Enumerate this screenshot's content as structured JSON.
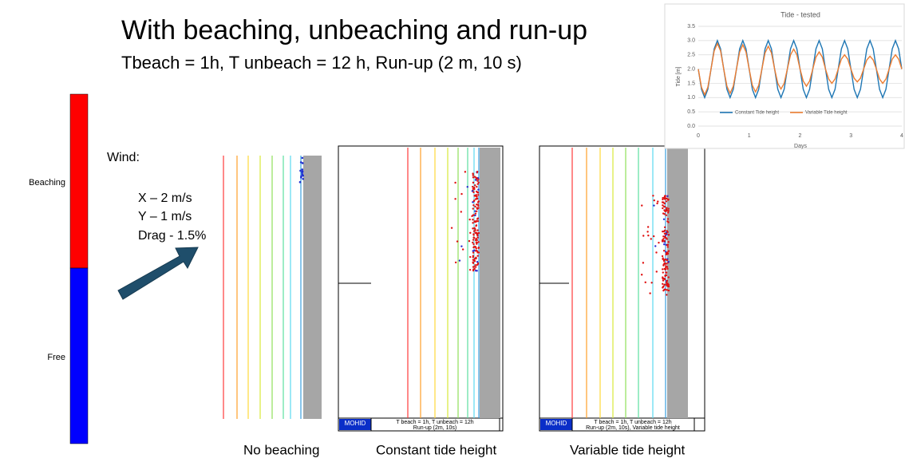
{
  "title": "With beaching, unbeaching and run-up",
  "subtitle": "Tbeach = 1h, T unbeach = 12 h, Run-up (2 m, 10 s)",
  "colorbar": {
    "labels": [
      "Beaching",
      "Free"
    ]
  },
  "wind": {
    "heading": "Wind:",
    "lines": [
      "X – 2 m/s",
      "Y – 1 m/s",
      "Drag - 1.5%"
    ]
  },
  "panels": [
    {
      "caption": "No beaching"
    },
    {
      "caption": "Constant tide height",
      "logo": "MOHID",
      "footer": [
        "T beach = 1h, T unbeach = 12h",
        "Run-up (2m, 10s)"
      ]
    },
    {
      "caption": "Variable tide height",
      "logo": "MOHID",
      "footer": [
        "T beach = 1h, T unbeach = 12h",
        "Run-up (2m, 10s), Variable tide height"
      ]
    }
  ],
  "chart_data": {
    "type": "line",
    "title": "Tide - tested",
    "xlabel": "Days",
    "ylabel": "Tide [m]",
    "x": [
      0,
      0.0625,
      0.125,
      0.1875,
      0.25,
      0.3125,
      0.375,
      0.4375,
      0.5,
      0.5625,
      0.625,
      0.6875,
      0.75,
      0.8125,
      0.875,
      0.9375,
      1,
      1.0625,
      1.125,
      1.1875,
      1.25,
      1.3125,
      1.375,
      1.4375,
      1.5,
      1.5625,
      1.625,
      1.6875,
      1.75,
      1.8125,
      1.875,
      1.9375,
      2,
      2.0625,
      2.125,
      2.1875,
      2.25,
      2.3125,
      2.375,
      2.4375,
      2.5,
      2.5625,
      2.625,
      2.6875,
      2.75,
      2.8125,
      2.875,
      2.9375,
      3,
      3.0625,
      3.125,
      3.1875,
      3.25,
      3.3125,
      3.375,
      3.4375,
      3.5,
      3.5625,
      3.625,
      3.6875,
      3.75,
      3.8125,
      3.875,
      3.9375,
      4
    ],
    "series": [
      {
        "name": "Constant Tide height",
        "color": "#1f77b4",
        "values": [
          2,
          1.29,
          1,
          1.29,
          2,
          2.71,
          3,
          2.71,
          2,
          1.29,
          1,
          1.29,
          2,
          2.71,
          3,
          2.71,
          2,
          1.29,
          1,
          1.29,
          2,
          2.71,
          3,
          2.71,
          2,
          1.29,
          1,
          1.29,
          2,
          2.71,
          3,
          2.71,
          2,
          1.29,
          1,
          1.29,
          2,
          2.71,
          3,
          2.71,
          2,
          1.29,
          1,
          1.29,
          2,
          2.71,
          3,
          2.71,
          2,
          1.29,
          1,
          1.29,
          2,
          2.71,
          3,
          2.71,
          2,
          1.29,
          1,
          1.29,
          2,
          2.71,
          3,
          2.71,
          2
        ]
      },
      {
        "name": "Variable Tide height",
        "color": "#ed7d31",
        "values": [
          2,
          1.36,
          1.1,
          1.36,
          2,
          2.64,
          2.9,
          2.64,
          2,
          1.4,
          1.15,
          1.4,
          2,
          2.6,
          2.85,
          2.6,
          2,
          1.43,
          1.2,
          1.43,
          2,
          2.57,
          2.8,
          2.57,
          2,
          1.5,
          1.3,
          1.5,
          2,
          2.5,
          2.7,
          2.5,
          2,
          1.58,
          1.4,
          1.58,
          2,
          2.42,
          2.6,
          2.42,
          2,
          1.65,
          1.5,
          1.65,
          2,
          2.35,
          2.5,
          2.35,
          2,
          1.68,
          1.55,
          1.68,
          2,
          2.32,
          2.45,
          2.32,
          2,
          1.65,
          1.5,
          1.65,
          2,
          2.35,
          2.5,
          2.35,
          2
        ]
      }
    ],
    "xlim": [
      0,
      4
    ],
    "xticks": [
      0,
      1,
      2,
      3,
      4
    ],
    "ylim": [
      0,
      3.5
    ],
    "yticks": [
      {
        "value": 0,
        "label": "0.0"
      },
      {
        "value": 0.5,
        "label": "0.5"
      },
      {
        "value": 1,
        "label": "1.0"
      },
      {
        "value": 1.5,
        "label": "1.5"
      },
      {
        "value": 2,
        "label": "2.0"
      },
      {
        "value": 2.5,
        "label": "2.5"
      },
      {
        "value": 3,
        "label": "3.0"
      },
      {
        "value": 3.5,
        "label": "3.5"
      }
    ],
    "grid": true,
    "legend": "bottom"
  }
}
